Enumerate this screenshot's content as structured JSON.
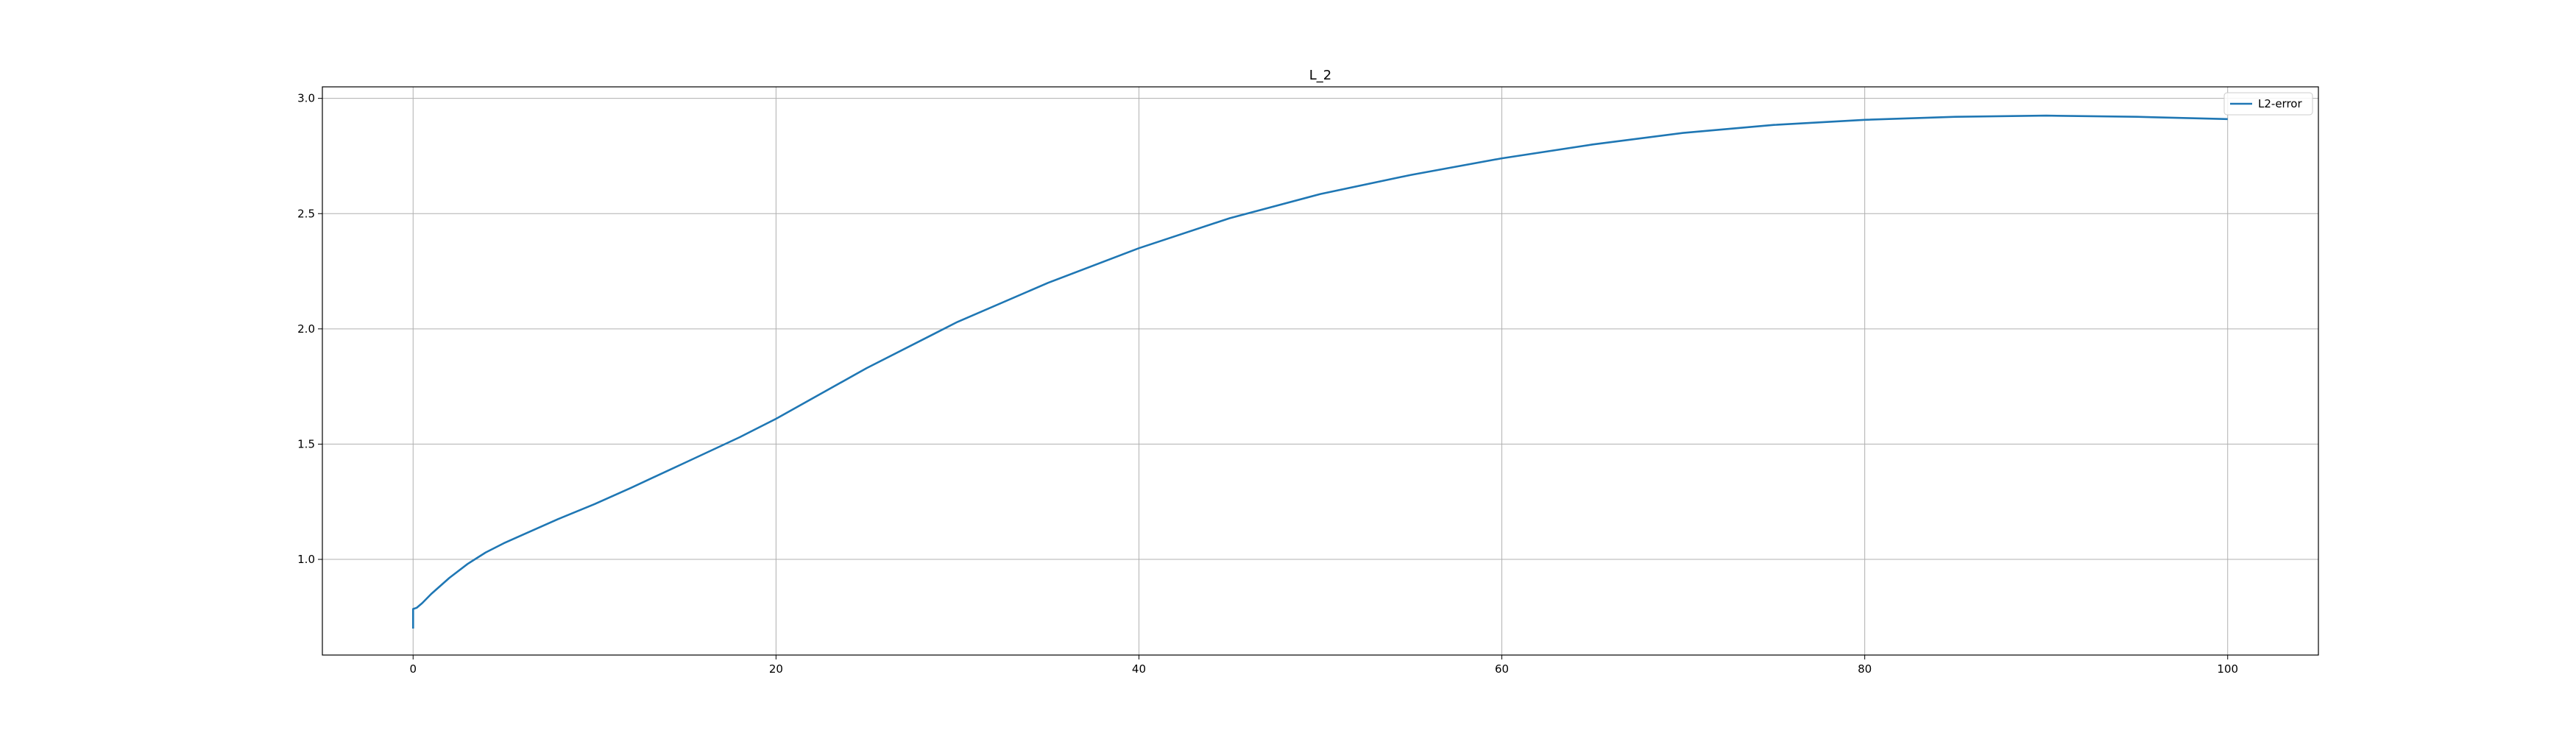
{
  "chart_data": {
    "type": "line",
    "title": "L_2",
    "xlabel": "",
    "ylabel": "",
    "xlim": [
      -5,
      105
    ],
    "ylim": [
      0.585,
      3.05
    ],
    "xticks": [
      0,
      20,
      40,
      60,
      80,
      100
    ],
    "xtick_labels": [
      "0",
      "20",
      "40",
      "60",
      "80",
      "100"
    ],
    "yticks": [
      1.0,
      1.5,
      2.0,
      2.5,
      3.0
    ],
    "ytick_labels": [
      "1.0",
      "1.5",
      "2.0",
      "2.5",
      "3.0"
    ],
    "grid": true,
    "legend": {
      "placement": "upper-right",
      "entries": [
        "L2-error"
      ]
    },
    "series": [
      {
        "name": "L2-error",
        "color": "#1f77b4",
        "x": [
          0,
          0,
          0.2,
          0.5,
          1,
          2,
          3,
          4,
          5,
          6,
          8,
          10,
          12,
          15,
          18,
          20,
          25,
          30,
          35,
          40,
          45,
          50,
          55,
          60,
          65,
          70,
          75,
          80,
          85,
          90,
          95,
          100
        ],
        "y": [
          0.7,
          0.785,
          0.79,
          0.81,
          0.85,
          0.92,
          0.98,
          1.03,
          1.07,
          1.105,
          1.175,
          1.24,
          1.31,
          1.42,
          1.53,
          1.61,
          1.83,
          2.03,
          2.2,
          2.35,
          2.48,
          2.585,
          2.668,
          2.74,
          2.8,
          2.85,
          2.885,
          2.907,
          2.92,
          2.925,
          2.92,
          2.91
        ]
      }
    ]
  }
}
